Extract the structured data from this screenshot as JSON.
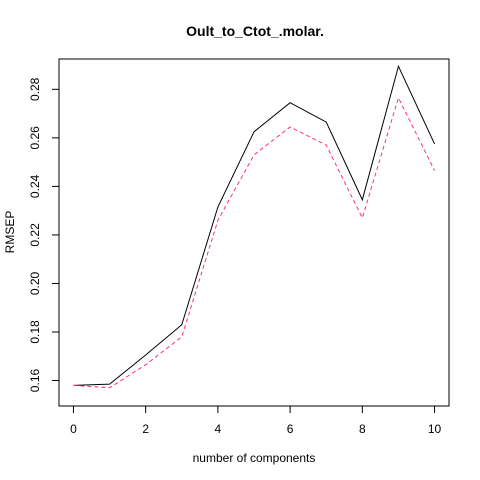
{
  "chart_data": {
    "type": "line",
    "title": "Oult_to_Ctot_.molar.",
    "xlabel": "number of components",
    "ylabel": "RMSEP",
    "x": [
      0,
      1,
      2,
      3,
      4,
      5,
      6,
      7,
      8,
      9,
      10
    ],
    "xticks": [
      "0",
      "2",
      "4",
      "6",
      "8",
      "10"
    ],
    "yticks": [
      "0.16",
      "0.18",
      "0.20",
      "0.22",
      "0.24",
      "0.26",
      "0.28"
    ],
    "xlim": [
      -0.4,
      10.4
    ],
    "ylim": [
      0.1495,
      0.2925
    ],
    "series": [
      {
        "values": [
          0.158,
          0.1585,
          0.1705,
          0.183,
          0.2315,
          0.2625,
          0.2745,
          0.2665,
          0.2345,
          0.2895,
          0.2575
        ],
        "color": "#000000",
        "dash": "solid"
      },
      {
        "values": [
          0.158,
          0.157,
          0.1665,
          0.178,
          0.226,
          0.253,
          0.2645,
          0.257,
          0.227,
          0.2765,
          0.2465
        ],
        "color": "#FF3366",
        "dash": "dashed"
      }
    ],
    "grid": false,
    "legend": "none"
  }
}
